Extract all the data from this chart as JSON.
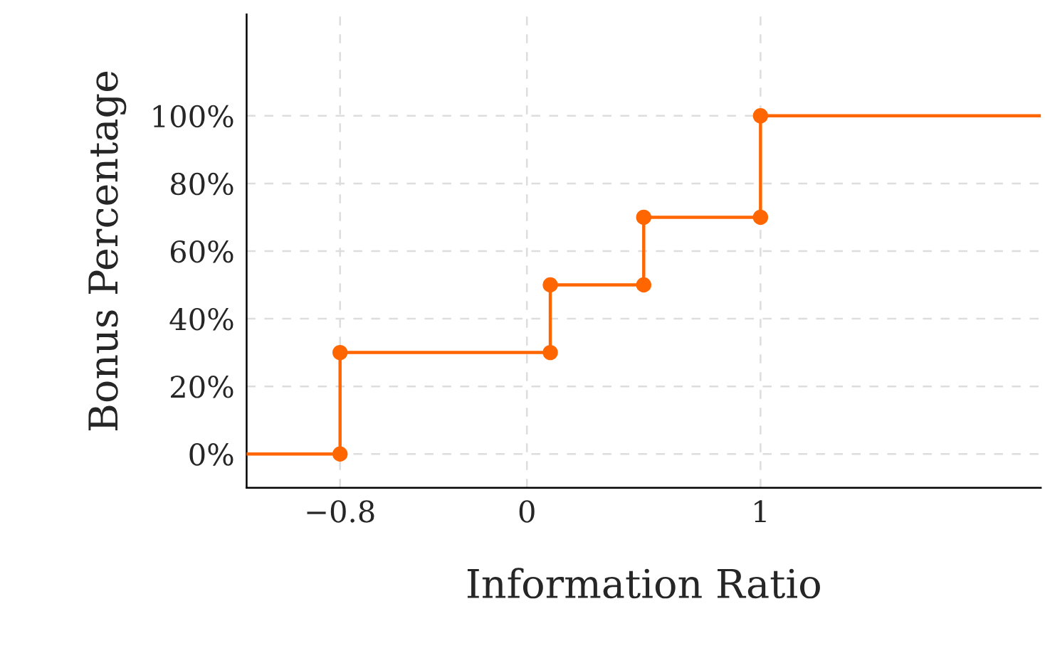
{
  "chart_data": {
    "type": "line",
    "xlabel": "Information Ratio",
    "ylabel": "Bonus Percentage",
    "series": [
      {
        "color": "#ff6600",
        "marker": "none",
        "x": [
          -1.2,
          -0.8,
          -0.8,
          0.1,
          0.1,
          0.5,
          0.5,
          1,
          1,
          2.2
        ],
        "values": [
          0,
          0,
          30,
          30,
          50,
          50,
          70,
          70,
          100,
          100
        ]
      },
      {
        "type": "scatter",
        "color": "#ff6600",
        "marker": "circle",
        "x": [
          -0.8,
          -0.8,
          0.1,
          0.1,
          0.5,
          0.5,
          1,
          1
        ],
        "values": [
          0,
          30,
          30,
          50,
          50,
          70,
          70,
          100
        ]
      }
    ],
    "xlim": [
      -1.2,
      2.2
    ],
    "xticks": [
      {
        "value": -0.8,
        "label": "−0.8"
      },
      0,
      1
    ],
    "ylim": [
      -10,
      130
    ],
    "yticks": [
      {
        "value": 0,
        "label": "0%"
      },
      {
        "value": 20,
        "label": "20%"
      },
      {
        "value": 40,
        "label": "40%"
      },
      {
        "value": 60,
        "label": "60%"
      },
      {
        "value": 80,
        "label": "80%"
      },
      {
        "value": 100,
        "label": "100%"
      }
    ],
    "grid": true
  }
}
